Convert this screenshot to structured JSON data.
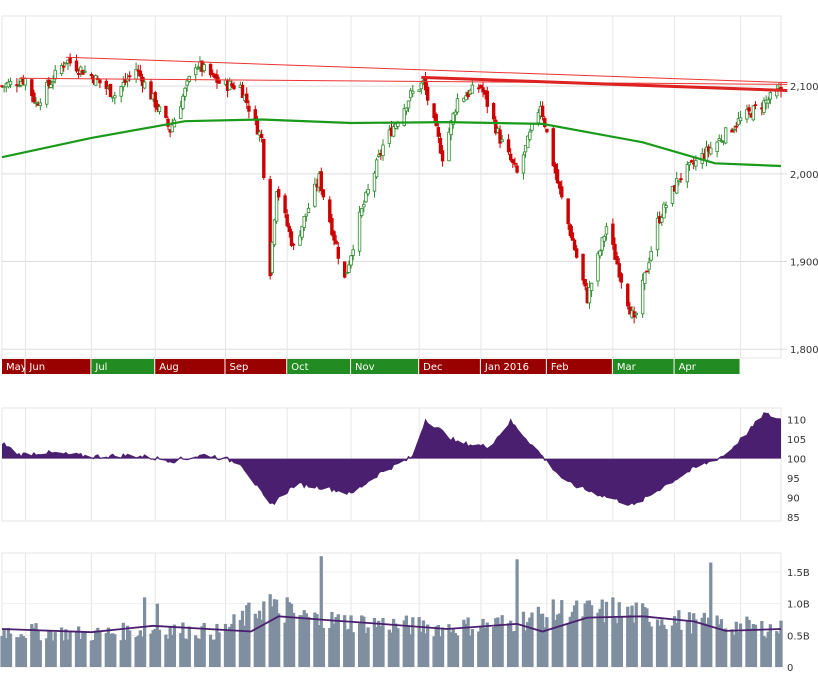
{
  "chart_data": [
    {
      "type": "candlestick",
      "title": "",
      "x_range": [
        "2015-04-20",
        "2016-04-20"
      ],
      "month_labels": [
        "May",
        "Jun",
        "Jul",
        "Aug",
        "Sep",
        "Oct",
        "Nov",
        "Dec",
        "Jan 2016",
        "Feb",
        "Mar",
        "Apr"
      ],
      "month_bar_colors": [
        "#990000",
        "#990000",
        "#228b22",
        "#990000",
        "#990000",
        "#228b22",
        "#228b22",
        "#990000",
        "#990000",
        "#990000",
        "#228b22",
        "#228b22"
      ],
      "y_ticks": [
        1800,
        1900,
        2000,
        2100
      ],
      "y_tick_labels": [
        "1,800",
        "1,900",
        "2,000",
        "2,100"
      ],
      "ylim": [
        1790,
        2180
      ],
      "grid": true,
      "up_color": "#2e8b2e",
      "down_color": "#cc0000",
      "close_path": [
        [
          "2015-04-20",
          2100
        ],
        [
          "2015-05-01",
          2108
        ],
        [
          "2015-05-06",
          2080
        ],
        [
          "2015-05-20",
          2130
        ],
        [
          "2015-06-01",
          2112
        ],
        [
          "2015-06-12",
          2090
        ],
        [
          "2015-06-22",
          2120
        ],
        [
          "2015-07-08",
          2050
        ],
        [
          "2015-07-20",
          2126
        ],
        [
          "2015-08-01",
          2102
        ],
        [
          "2015-08-10",
          2100
        ],
        [
          "2015-08-20",
          2040
        ],
        [
          "2015-08-24",
          1890
        ],
        [
          "2015-08-27",
          1985
        ],
        [
          "2015-09-04",
          1915
        ],
        [
          "2015-09-16",
          1995
        ],
        [
          "2015-09-28",
          1880
        ],
        [
          "2015-10-05",
          1950
        ],
        [
          "2015-10-16",
          2032
        ],
        [
          "2015-10-29",
          2090
        ],
        [
          "2015-11-04",
          2104
        ],
        [
          "2015-11-13",
          2020
        ],
        [
          "2015-11-20",
          2085
        ],
        [
          "2015-12-01",
          2100
        ],
        [
          "2015-12-10",
          2040
        ],
        [
          "2015-12-18",
          2000
        ],
        [
          "2015-12-29",
          2080
        ],
        [
          "2016-01-06",
          1990
        ],
        [
          "2016-01-20",
          1858
        ],
        [
          "2016-01-29",
          1940
        ],
        [
          "2016-02-11",
          1830
        ],
        [
          "2016-02-22",
          1945
        ],
        [
          "2016-03-03",
          1995
        ],
        [
          "2016-03-14",
          2020
        ],
        [
          "2016-03-31",
          2060
        ],
        [
          "2016-04-20",
          2095
        ]
      ],
      "sma200": [
        [
          "2015-04-20",
          2019
        ],
        [
          "2015-06-01",
          2041
        ],
        [
          "2015-07-15",
          2060
        ],
        [
          "2015-08-20",
          2062
        ],
        [
          "2015-10-01",
          2058
        ],
        [
          "2015-11-15",
          2059
        ],
        [
          "2015-12-30",
          2057
        ],
        [
          "2016-02-15",
          2036
        ],
        [
          "2016-03-20",
          2012
        ],
        [
          "2016-04-20",
          2009
        ]
      ],
      "resistance_lines": [
        {
          "from": [
            "2015-05-20",
            2133
          ],
          "to": [
            "2016-04-23",
            2104
          ],
          "color": "#ee3333",
          "width": 1
        },
        {
          "from": [
            "2015-04-28",
            2109
          ],
          "to": [
            "2016-04-23",
            2102
          ],
          "color": "#ee3333",
          "width": 1
        },
        {
          "from": [
            "2015-11-03",
            2110
          ],
          "to": [
            "2016-04-23",
            2095
          ],
          "color": "#dd2222",
          "width": 3
        }
      ]
    },
    {
      "type": "area",
      "baseline": 100,
      "y_ticks": [
        85,
        90,
        95,
        100,
        105,
        110
      ],
      "y_tick_labels": [
        "85",
        "90",
        "95",
        "100",
        "105",
        "110"
      ],
      "ylim": [
        84,
        113
      ],
      "fill_color": "#4b1f6f",
      "x_range": [
        "2015-04-20",
        "2016-04-20"
      ],
      "series": [
        [
          "2015-04-20",
          104
        ],
        [
          "2015-04-28",
          101
        ],
        [
          "2015-05-10",
          101.5
        ],
        [
          "2015-06-01",
          100.5
        ],
        [
          "2015-06-20",
          100.8
        ],
        [
          "2015-07-10",
          99.5
        ],
        [
          "2015-07-25",
          101
        ],
        [
          "2015-08-10",
          99
        ],
        [
          "2015-08-24",
          88
        ],
        [
          "2015-09-05",
          93.5
        ],
        [
          "2015-09-20",
          92.5
        ],
        [
          "2015-10-01",
          91
        ],
        [
          "2015-10-15",
          96.5
        ],
        [
          "2015-10-30",
          100.5
        ],
        [
          "2015-11-05",
          110
        ],
        [
          "2015-11-20",
          104
        ],
        [
          "2015-12-05",
          103
        ],
        [
          "2015-12-15",
          109.5
        ],
        [
          "2015-12-30",
          100.5
        ],
        [
          "2016-01-10",
          94
        ],
        [
          "2016-01-22",
          91.5
        ],
        [
          "2016-02-11",
          88
        ],
        [
          "2016-02-25",
          93
        ],
        [
          "2016-03-10",
          97.5
        ],
        [
          "2016-03-25",
          101
        ],
        [
          "2016-04-05",
          107
        ],
        [
          "2016-04-12",
          111.5
        ],
        [
          "2016-04-20",
          110
        ]
      ]
    },
    {
      "type": "bar",
      "y_ticks": [
        0,
        0.5,
        1.0,
        1.5
      ],
      "y_tick_labels": [
        "0",
        "0.5B",
        "1.0B",
        "1.5B"
      ],
      "ylim": [
        0,
        1.8
      ],
      "bar_color": "#7f8fa0",
      "ma_color": "#4b1f6f",
      "x_range": [
        "2015-04-20",
        "2016-04-20"
      ],
      "volume_base": [
        [
          "2015-04-20",
          0.58
        ],
        [
          "2015-06-01",
          0.52
        ],
        [
          "2015-07-01",
          0.6
        ],
        [
          "2015-08-01",
          0.55
        ],
        [
          "2015-08-20",
          0.95
        ],
        [
          "2015-09-15",
          0.75
        ],
        [
          "2015-10-15",
          0.68
        ],
        [
          "2015-11-15",
          0.62
        ],
        [
          "2015-12-15",
          0.7
        ],
        [
          "2016-01-10",
          0.9
        ],
        [
          "2016-02-10",
          0.85
        ],
        [
          "2016-03-10",
          0.7
        ],
        [
          "2016-04-20",
          0.6
        ]
      ],
      "spikes": [
        [
          "2015-06-26",
          1.1
        ],
        [
          "2015-07-02",
          1.0
        ],
        [
          "2015-08-24",
          1.15
        ],
        [
          "2015-09-01",
          1.1
        ],
        [
          "2015-09-17",
          1.75
        ],
        [
          "2015-12-18",
          1.7
        ],
        [
          "2016-01-15",
          1.05
        ],
        [
          "2016-02-01",
          1.1
        ],
        [
          "2016-03-18",
          1.65
        ]
      ],
      "ma50": [
        [
          "2015-04-20",
          0.6
        ],
        [
          "2015-06-01",
          0.55
        ],
        [
          "2015-06-30",
          0.65
        ],
        [
          "2015-08-15",
          0.56
        ],
        [
          "2015-08-28",
          0.8
        ],
        [
          "2015-09-20",
          0.74
        ],
        [
          "2015-10-15",
          0.68
        ],
        [
          "2015-11-15",
          0.6
        ],
        [
          "2015-12-18",
          0.68
        ],
        [
          "2015-12-30",
          0.56
        ],
        [
          "2016-01-20",
          0.78
        ],
        [
          "2016-02-15",
          0.8
        ],
        [
          "2016-03-10",
          0.72
        ],
        [
          "2016-03-25",
          0.57
        ],
        [
          "2016-04-20",
          0.6
        ]
      ]
    }
  ]
}
